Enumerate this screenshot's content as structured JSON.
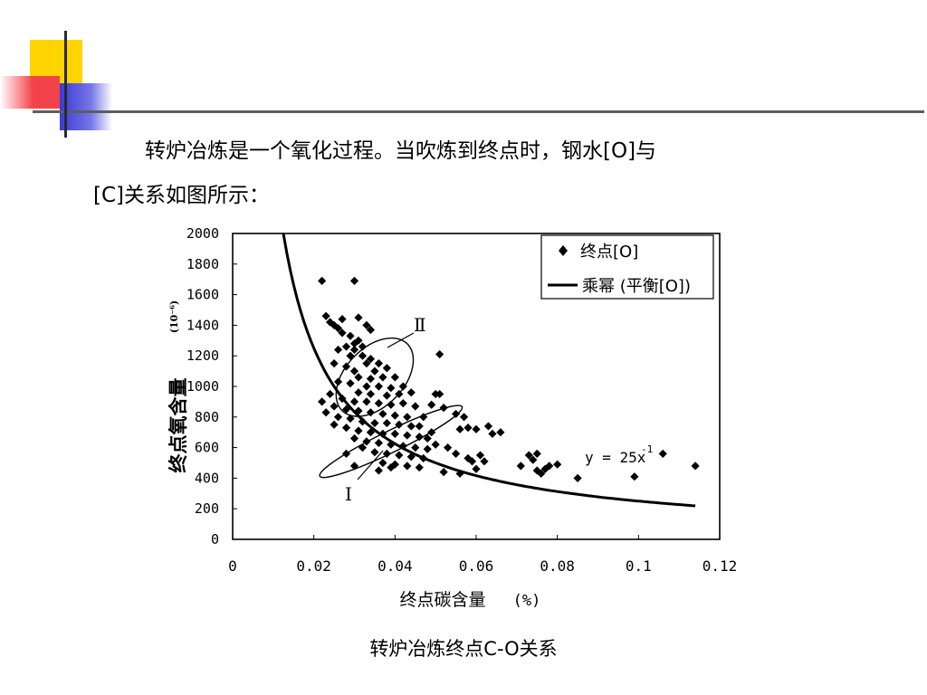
{
  "paragraph": {
    "line1": "转炉冶炼是一个氧化过程。当吹炼到终点时，钢水[O]与",
    "line2": "[C]关系如图所示："
  },
  "caption": "转炉冶炼终点C-O关系",
  "chart_data": {
    "type": "scatter",
    "ylabel": "终点氧含量",
    "ylabel_unit": "(10⁻⁶)",
    "xlabel": "终点碳含量",
    "xlabel_unit": "(%)",
    "xlim": [
      0,
      0.12
    ],
    "ylim": [
      0,
      2000
    ],
    "x_ticks": [
      "0",
      "0.02",
      "0.04",
      "0.06",
      "0.08",
      "0.1",
      "0.12"
    ],
    "y_ticks": [
      "0",
      "200",
      "400",
      "600",
      "800",
      "1000",
      "1200",
      "1400",
      "1600",
      "1800",
      "2000"
    ],
    "legend": {
      "position": "top-right",
      "entries": [
        "终点[O]",
        "乘幂 (平衡[O])"
      ]
    },
    "curve": {
      "equation": "y = 25x",
      "exponent": "-1",
      "coefficient": 25,
      "power": -1,
      "x_start": 0.0125,
      "x_end": 0.114
    },
    "regions": [
      {
        "label": "Ⅱ",
        "cx": 0.035,
        "cy": 1060,
        "rx_c": 0.0115,
        "ry_o": 190,
        "angle_deg": -46
      },
      {
        "label": "I",
        "cx": 0.039,
        "cy": 640,
        "rx_c": 0.0195,
        "ry_o": 70,
        "angle_deg": -26
      }
    ],
    "series": [
      {
        "name": "终点[O]",
        "points": [
          [
            0.022,
            1690
          ],
          [
            0.03,
            1690
          ],
          [
            0.023,
            1460
          ],
          [
            0.024,
            1420
          ],
          [
            0.025,
            1400
          ],
          [
            0.026,
            1380
          ],
          [
            0.027,
            1350
          ],
          [
            0.029,
            1330
          ],
          [
            0.031,
            1300
          ],
          [
            0.03,
            1280
          ],
          [
            0.028,
            1260
          ],
          [
            0.032,
            1260
          ],
          [
            0.026,
            1240
          ],
          [
            0.033,
            1400
          ],
          [
            0.034,
            1370
          ],
          [
            0.031,
            1450
          ],
          [
            0.027,
            1440
          ],
          [
            0.03,
            1240
          ],
          [
            0.029,
            1200
          ],
          [
            0.032,
            1200
          ],
          [
            0.034,
            1180
          ],
          [
            0.025,
            1150
          ],
          [
            0.028,
            1130
          ],
          [
            0.033,
            1150
          ],
          [
            0.036,
            1150
          ],
          [
            0.03,
            1100
          ],
          [
            0.035,
            1100
          ],
          [
            0.038,
            1120
          ],
          [
            0.031,
            1060
          ],
          [
            0.034,
            1050
          ],
          [
            0.037,
            1060
          ],
          [
            0.04,
            1060
          ],
          [
            0.026,
            1030
          ],
          [
            0.029,
            1020
          ],
          [
            0.033,
            1000
          ],
          [
            0.036,
            1000
          ],
          [
            0.039,
            990
          ],
          [
            0.042,
            1000
          ],
          [
            0.031,
            960
          ],
          [
            0.034,
            950
          ],
          [
            0.038,
            940
          ],
          [
            0.041,
            950
          ],
          [
            0.044,
            960
          ],
          [
            0.024,
            950
          ],
          [
            0.027,
            920
          ],
          [
            0.03,
            900
          ],
          [
            0.033,
            900
          ],
          [
            0.036,
            890
          ],
          [
            0.039,
            880
          ],
          [
            0.042,
            890
          ],
          [
            0.045,
            870
          ],
          [
            0.022,
            900
          ],
          [
            0.025,
            870
          ],
          [
            0.028,
            850
          ],
          [
            0.031,
            840
          ],
          [
            0.034,
            830
          ],
          [
            0.037,
            820
          ],
          [
            0.04,
            810
          ],
          [
            0.043,
            800
          ],
          [
            0.047,
            800
          ],
          [
            0.023,
            830
          ],
          [
            0.026,
            800
          ],
          [
            0.029,
            790
          ],
          [
            0.032,
            770
          ],
          [
            0.035,
            760
          ],
          [
            0.038,
            760
          ],
          [
            0.041,
            750
          ],
          [
            0.044,
            740
          ],
          [
            0.025,
            750
          ],
          [
            0.028,
            730
          ],
          [
            0.031,
            710
          ],
          [
            0.034,
            700
          ],
          [
            0.037,
            690
          ],
          [
            0.04,
            690
          ],
          [
            0.043,
            680
          ],
          [
            0.046,
            670
          ],
          [
            0.03,
            660
          ],
          [
            0.033,
            640
          ],
          [
            0.036,
            630
          ],
          [
            0.039,
            620
          ],
          [
            0.042,
            610
          ],
          [
            0.045,
            600
          ],
          [
            0.048,
            590
          ],
          [
            0.035,
            570
          ],
          [
            0.038,
            560
          ],
          [
            0.041,
            550
          ],
          [
            0.044,
            540
          ],
          [
            0.047,
            530
          ],
          [
            0.037,
            500
          ],
          [
            0.04,
            490
          ],
          [
            0.043,
            480
          ],
          [
            0.046,
            470
          ],
          [
            0.03,
            480
          ],
          [
            0.028,
            560
          ],
          [
            0.032,
            600
          ],
          [
            0.036,
            450
          ],
          [
            0.039,
            470
          ],
          [
            0.05,
            950
          ],
          [
            0.051,
            950
          ],
          [
            0.049,
            880
          ],
          [
            0.052,
            860
          ],
          [
            0.051,
            1210
          ],
          [
            0.055,
            820
          ],
          [
            0.057,
            800
          ],
          [
            0.056,
            720
          ],
          [
            0.058,
            730
          ],
          [
            0.06,
            720
          ],
          [
            0.063,
            740
          ],
          [
            0.05,
            620
          ],
          [
            0.053,
            600
          ],
          [
            0.055,
            560
          ],
          [
            0.058,
            530
          ],
          [
            0.061,
            550
          ],
          [
            0.062,
            510
          ],
          [
            0.064,
            690
          ],
          [
            0.059,
            510
          ],
          [
            0.052,
            440
          ],
          [
            0.056,
            430
          ],
          [
            0.06,
            460
          ],
          [
            0.048,
            660
          ],
          [
            0.046,
            740
          ],
          [
            0.049,
            700
          ],
          [
            0.066,
            700
          ],
          [
            0.071,
            480
          ],
          [
            0.073,
            550
          ],
          [
            0.074,
            520
          ],
          [
            0.075,
            560
          ],
          [
            0.075,
            450
          ],
          [
            0.076,
            430
          ],
          [
            0.077,
            460
          ],
          [
            0.078,
            480
          ],
          [
            0.08,
            490
          ],
          [
            0.085,
            400
          ],
          [
            0.099,
            410
          ],
          [
            0.106,
            560
          ],
          [
            0.114,
            480
          ]
        ]
      }
    ]
  }
}
